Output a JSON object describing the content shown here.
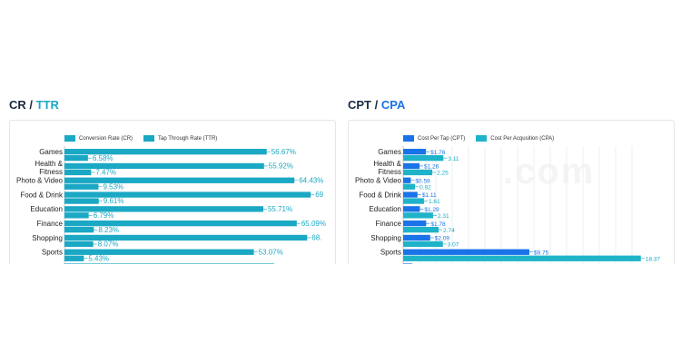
{
  "left": {
    "title_a": "CR",
    "sep": " / ",
    "title_b": "TTR",
    "legend": [
      "Conversion Rate (CR)",
      "Tap Through Rate (TTR)"
    ]
  },
  "right": {
    "title_a": "CPT",
    "sep": " / ",
    "title_b": "CPA",
    "legend": [
      "Cost Per Tap (CPT)",
      "Cost Per Acqusition (CPA)"
    ]
  },
  "colors": {
    "primary_left": "#1aa8c4",
    "secondary_left": "#1aa8c4",
    "cpt": "#1a73e8",
    "cpa": "#1fb3c9",
    "label": "#1aa8c4",
    "cpt_label": "#1a73e8"
  },
  "chart_data": [
    {
      "type": "bar",
      "orientation": "horizontal",
      "categories": [
        "Games",
        "Health & Fitness",
        "Photo & Video",
        "Food & Drink",
        "Education",
        "Finance",
        "Shopping",
        "Sports"
      ],
      "category_lines": [
        [
          "Games"
        ],
        [
          "Health &",
          "Fitness"
        ],
        [
          "Photo & Video"
        ],
        [
          "Food & Drink"
        ],
        [
          "Education"
        ],
        [
          "Finance"
        ],
        [
          "Shopping"
        ],
        [
          "Sports"
        ]
      ],
      "series": [
        {
          "name": "Tap Through Rate (TTR)",
          "values": [
            56.67,
            55.92,
            64.43,
            69,
            55.71,
            65.09,
            68,
            53.07
          ],
          "labels": [
            "56.67%",
            "55.92%",
            "64.43%",
            "69",
            "55.71%",
            "65.09%",
            "68.",
            "53.07%"
          ]
        },
        {
          "name": "Conversion Rate (CR)",
          "values": [
            6.58,
            7.47,
            9.53,
            9.61,
            6.79,
            8.23,
            8.07,
            5.43
          ],
          "labels": [
            "6.58%",
            "7.47%",
            "9.53%",
            "9.61%",
            "6.79%",
            "8.23%",
            "8.07%",
            "5.43%"
          ]
        }
      ],
      "xlim": [
        0,
        72
      ]
    },
    {
      "type": "bar",
      "orientation": "horizontal",
      "categories": [
        "Games",
        "Health & Fitness",
        "Photo & Video",
        "Food & Drink",
        "Education",
        "Finance",
        "Shopping",
        "Sports"
      ],
      "category_lines": [
        [
          "Games"
        ],
        [
          "Health &",
          "Fitness"
        ],
        [
          "Photo & Video"
        ],
        [
          "Food & Drink"
        ],
        [
          "Education"
        ],
        [
          "Finance"
        ],
        [
          "Shopping"
        ],
        [
          "Sports"
        ]
      ],
      "series": [
        {
          "name": "Cost Per Tap (CPT)",
          "values": [
            1.76,
            1.26,
            0.59,
            1.11,
            1.29,
            1.78,
            2.09,
            9.75
          ],
          "labels": [
            "$1.76",
            "$1.26",
            "$0.59",
            "$1.11",
            "$1.29",
            "$1.78",
            "$2.09",
            "$9.75"
          ]
        },
        {
          "name": "Cost Per Acqusition (CPA)",
          "values": [
            3.11,
            2.25,
            0.92,
            1.61,
            2.31,
            2.74,
            3.07,
            18.37
          ],
          "labels": [
            "3.11",
            "2.25",
            "0.92",
            "1.61",
            "2.31",
            "2.74",
            "3.07",
            "18.37"
          ]
        }
      ],
      "xlim": [
        0,
        20
      ]
    }
  ]
}
